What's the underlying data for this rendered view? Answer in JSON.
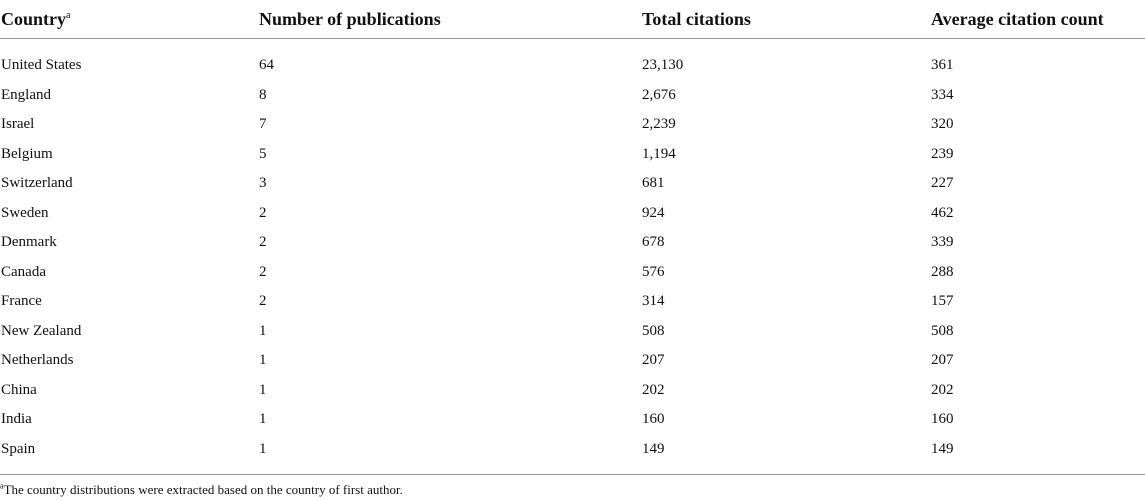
{
  "table": {
    "headers": {
      "country": "Country",
      "country_marker": "a",
      "publications": "Number of publications",
      "citations": "Total citations",
      "average": "Average citation count"
    },
    "rows": [
      {
        "country": "United States",
        "publications": "64",
        "citations": "23,130",
        "average": "361"
      },
      {
        "country": "England",
        "publications": "8",
        "citations": "2,676",
        "average": "334"
      },
      {
        "country": "Israel",
        "publications": "7",
        "citations": "2,239",
        "average": "320"
      },
      {
        "country": "Belgium",
        "publications": "5",
        "citations": "1,194",
        "average": "239"
      },
      {
        "country": "Switzerland",
        "publications": "3",
        "citations": "681",
        "average": "227"
      },
      {
        "country": "Sweden",
        "publications": "2",
        "citations": "924",
        "average": "462"
      },
      {
        "country": "Denmark",
        "publications": "2",
        "citations": "678",
        "average": "339"
      },
      {
        "country": "Canada",
        "publications": "2",
        "citations": "576",
        "average": "288"
      },
      {
        "country": "France",
        "publications": "2",
        "citations": "314",
        "average": "157"
      },
      {
        "country": "New Zealand",
        "publications": "1",
        "citations": "508",
        "average": "508"
      },
      {
        "country": "Netherlands",
        "publications": "1",
        "citations": "207",
        "average": "207"
      },
      {
        "country": "China",
        "publications": "1",
        "citations": "202",
        "average": "202"
      },
      {
        "country": "India",
        "publications": "1",
        "citations": "160",
        "average": "160"
      },
      {
        "country": "Spain",
        "publications": "1",
        "citations": "149",
        "average": "149"
      }
    ]
  },
  "footnote": {
    "marker": "a",
    "text": "The country distributions were extracted based on the country of first author."
  }
}
